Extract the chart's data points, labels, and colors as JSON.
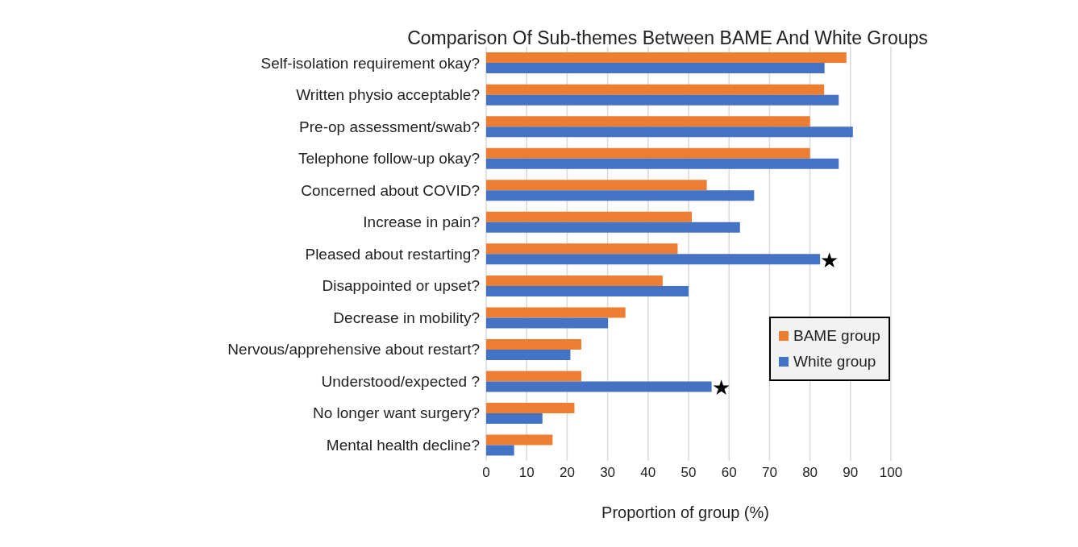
{
  "chart_data": {
    "type": "bar",
    "orientation": "horizontal",
    "title": "Comparison Of Sub-themes Between BAME And White Groups",
    "xlabel": "Proportion of group (%)",
    "categories": [
      "Self-isolation requirement okay?",
      "Written physio acceptable?",
      "Pre-op assessment/swab?",
      "Telephone follow-up okay?",
      "Concerned about COVID?",
      "Increase in pain?",
      "Pleased about restarting?",
      "Disappointed or upset?",
      "Decrease in mobility?",
      "Nervous/apprehensive about restart?",
      "Understood/expected ?",
      "No longer want surgery?",
      "Mental health decline?"
    ],
    "series": [
      {
        "name": "BAME group",
        "color": "#ed7d31",
        "values": [
          89.0,
          83.5,
          80.0,
          80.0,
          54.5,
          50.8,
          47.3,
          43.6,
          34.4,
          23.5,
          23.5,
          21.8,
          16.4
        ]
      },
      {
        "name": "White group",
        "color": "#4472c4",
        "values": [
          83.6,
          87.1,
          90.6,
          87.1,
          66.2,
          62.7,
          82.5,
          50.0,
          30.1,
          20.8,
          55.7,
          13.9,
          6.9
        ]
      }
    ],
    "xlim": [
      0,
      100
    ],
    "xticks": [
      0,
      10,
      20,
      30,
      40,
      50,
      60,
      70,
      80,
      90,
      100
    ],
    "grid": "x",
    "legend": "right",
    "annotations": [
      {
        "text": "★",
        "x": 82.5,
        "y": "Pleased about restarting?"
      },
      {
        "text": "★",
        "x": 55.7,
        "y": "Understood/expected ?"
      }
    ]
  }
}
